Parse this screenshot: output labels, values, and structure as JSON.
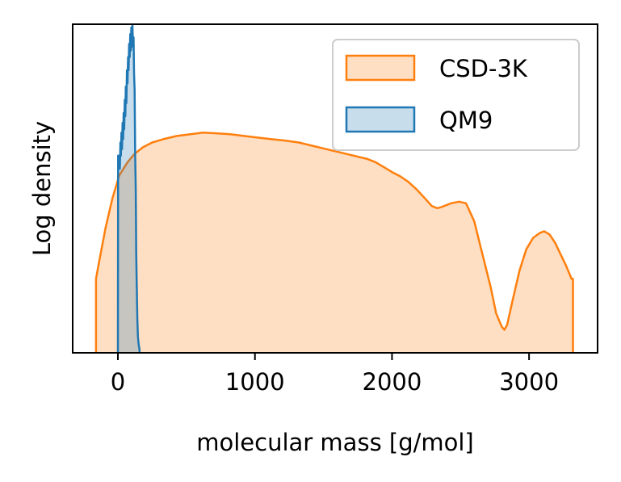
{
  "chart_data": {
    "type": "area",
    "xlabel": "molecular mass [g/mol]",
    "ylabel": "Log density",
    "xlim": [
      -330,
      3500
    ],
    "ylim": [
      0,
      1
    ],
    "x_ticks": [
      0,
      1000,
      2000,
      3000
    ],
    "y_ticks": [],
    "legend_position": "top-right",
    "series": [
      {
        "name": "CSD-3K",
        "color": "#ff7f0e",
        "fill": "#ffdfc3",
        "x": [
          -160,
          -140,
          -90,
          -40,
          10,
          70,
          120,
          180,
          250,
          330,
          430,
          530,
          620,
          720,
          820,
          920,
          1020,
          1120,
          1220,
          1320,
          1420,
          1520,
          1620,
          1720,
          1820,
          1880,
          1950,
          2000,
          2060,
          2120,
          2180,
          2240,
          2290,
          2330,
          2370,
          2430,
          2490,
          2540,
          2600,
          2660,
          2720,
          2760,
          2800,
          2820,
          2840,
          2880,
          2930,
          2980,
          3030,
          3080,
          3110,
          3150,
          3190,
          3230,
          3270,
          3310,
          3320
        ],
        "y": [
          0.225,
          0.27,
          0.38,
          0.47,
          0.54,
          0.58,
          0.605,
          0.625,
          0.64,
          0.65,
          0.66,
          0.665,
          0.67,
          0.668,
          0.665,
          0.66,
          0.655,
          0.65,
          0.646,
          0.64,
          0.63,
          0.62,
          0.61,
          0.6,
          0.59,
          0.58,
          0.563,
          0.55,
          0.537,
          0.52,
          0.497,
          0.47,
          0.447,
          0.44,
          0.445,
          0.455,
          0.46,
          0.455,
          0.4,
          0.3,
          0.2,
          0.12,
          0.08,
          0.07,
          0.085,
          0.16,
          0.25,
          0.315,
          0.35,
          0.365,
          0.37,
          0.36,
          0.335,
          0.3,
          0.265,
          0.225,
          0.225
        ]
      },
      {
        "name": "QM9",
        "color": "#1f77b4",
        "fill": "#c6d9ec",
        "x": [
          0,
          2,
          6,
          10,
          14,
          18,
          22,
          26,
          30,
          34,
          38,
          42,
          46,
          50,
          54,
          58,
          62,
          66,
          70,
          74,
          78,
          82,
          86,
          90,
          94,
          98,
          102,
          106,
          110,
          114,
          118,
          122,
          126,
          130,
          134,
          138,
          142,
          146,
          150,
          154,
          158
        ],
        "y": [
          0.01,
          0.6,
          0.58,
          0.6,
          0.56,
          0.64,
          0.6,
          0.67,
          0.62,
          0.7,
          0.65,
          0.73,
          0.68,
          0.77,
          0.72,
          0.81,
          0.76,
          0.86,
          0.82,
          0.9,
          0.86,
          0.94,
          0.9,
          0.97,
          0.92,
          0.99,
          0.95,
          1.0,
          0.93,
          0.96,
          0.85,
          0.8,
          0.6,
          0.5,
          0.3,
          0.2,
          0.1,
          0.05,
          0.03,
          0.02,
          0.01
        ]
      }
    ]
  }
}
